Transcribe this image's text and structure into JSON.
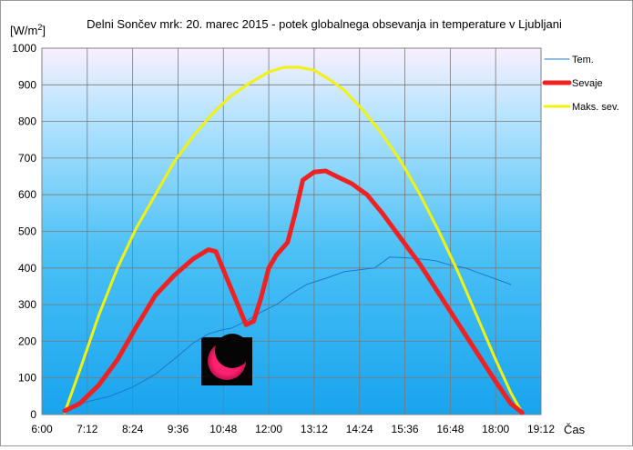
{
  "chart_data": {
    "type": "line",
    "title": "Delni Sončev mrk: 20. marec 2015 - potek globalnega obsevanja in temperature v Ljubljani",
    "ylabel_main": "[W/m",
    "ylabel_sup": "2",
    "ylabel_end": "]",
    "xlabel": "Čas",
    "ylim": [
      0,
      1000
    ],
    "xlim_hours": [
      6.0,
      19.2
    ],
    "yticks": [
      "0",
      "100",
      "200",
      "300",
      "400",
      "500",
      "600",
      "700",
      "800",
      "900",
      "1000"
    ],
    "xticks": [
      "6:00",
      "7:12",
      "8:24",
      "9:36",
      "10:48",
      "12:00",
      "13:12",
      "14:24",
      "15:36",
      "16:48",
      "18:00",
      "19:12"
    ],
    "grid": true,
    "legend_position": "right",
    "series": [
      {
        "name": "Tem.",
        "color": "#1f77c8",
        "points": [
          [
            6.6,
            15
          ],
          [
            7.2,
            35
          ],
          [
            7.8,
            50
          ],
          [
            8.4,
            75
          ],
          [
            9.0,
            110
          ],
          [
            9.6,
            160
          ],
          [
            10.0,
            195
          ],
          [
            10.4,
            220
          ],
          [
            10.8,
            232
          ],
          [
            11.0,
            235
          ],
          [
            11.4,
            255
          ],
          [
            11.8,
            280
          ],
          [
            12.2,
            300
          ],
          [
            12.6,
            330
          ],
          [
            13.0,
            355
          ],
          [
            13.6,
            375
          ],
          [
            14.0,
            390
          ],
          [
            14.4,
            395
          ],
          [
            14.8,
            400
          ],
          [
            15.2,
            430
          ],
          [
            15.6,
            428
          ],
          [
            16.0,
            425
          ],
          [
            16.4,
            420
          ],
          [
            16.8,
            408
          ],
          [
            17.2,
            400
          ],
          [
            17.6,
            385
          ],
          [
            18.0,
            370
          ],
          [
            18.4,
            355
          ]
        ]
      },
      {
        "name": "Sevaje",
        "color": "#ee2222",
        "points": [
          [
            6.6,
            10
          ],
          [
            7.0,
            30
          ],
          [
            7.5,
            80
          ],
          [
            8.0,
            150
          ],
          [
            8.5,
            240
          ],
          [
            9.0,
            325
          ],
          [
            9.5,
            380
          ],
          [
            10.0,
            425
          ],
          [
            10.4,
            450
          ],
          [
            10.6,
            445
          ],
          [
            10.9,
            370
          ],
          [
            11.1,
            320
          ],
          [
            11.3,
            270
          ],
          [
            11.4,
            245
          ],
          [
            11.6,
            255
          ],
          [
            11.8,
            320
          ],
          [
            12.0,
            400
          ],
          [
            12.2,
            435
          ],
          [
            12.5,
            470
          ],
          [
            12.7,
            550
          ],
          [
            12.9,
            640
          ],
          [
            13.2,
            662
          ],
          [
            13.5,
            665
          ],
          [
            13.8,
            650
          ],
          [
            14.2,
            630
          ],
          [
            14.6,
            600
          ],
          [
            15.0,
            550
          ],
          [
            15.5,
            480
          ],
          [
            16.0,
            410
          ],
          [
            16.5,
            330
          ],
          [
            17.0,
            250
          ],
          [
            17.5,
            170
          ],
          [
            18.0,
            90
          ],
          [
            18.4,
            30
          ],
          [
            18.7,
            5
          ]
        ]
      },
      {
        "name": "Maks. sev.",
        "color": "#f2f20e",
        "points": [
          [
            6.6,
            5
          ],
          [
            7.0,
            120
          ],
          [
            7.5,
            270
          ],
          [
            8.0,
            400
          ],
          [
            8.5,
            510
          ],
          [
            9.0,
            600
          ],
          [
            9.5,
            690
          ],
          [
            10.0,
            760
          ],
          [
            10.5,
            820
          ],
          [
            11.0,
            870
          ],
          [
            11.5,
            905
          ],
          [
            12.0,
            935
          ],
          [
            12.4,
            948
          ],
          [
            12.8,
            948
          ],
          [
            13.2,
            940
          ],
          [
            13.6,
            915
          ],
          [
            14.0,
            885
          ],
          [
            14.5,
            830
          ],
          [
            15.0,
            765
          ],
          [
            15.5,
            690
          ],
          [
            16.0,
            600
          ],
          [
            16.5,
            500
          ],
          [
            17.0,
            390
          ],
          [
            17.5,
            270
          ],
          [
            18.0,
            150
          ],
          [
            18.4,
            60
          ],
          [
            18.7,
            5
          ]
        ]
      }
    ]
  }
}
